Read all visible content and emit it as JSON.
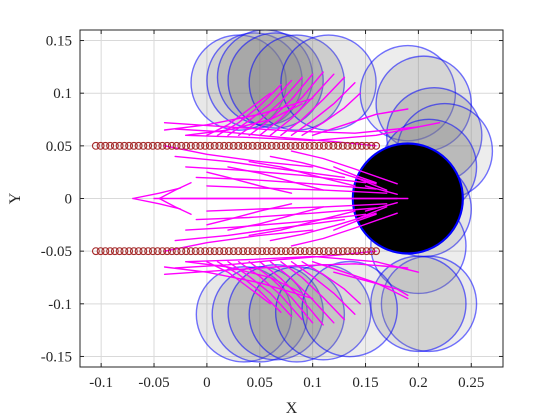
{
  "chart_data": {
    "type": "scatter",
    "title": "",
    "xlabel": "X",
    "ylabel": "Y",
    "xlim": [
      -0.12,
      0.28
    ],
    "ylim": [
      -0.16,
      0.16
    ],
    "grid": true,
    "x_ticks": [
      -0.1,
      -0.05,
      0,
      0.05,
      0.1,
      0.15,
      0.2,
      0.25
    ],
    "x_tick_labels": [
      "-0.1",
      "-0.05",
      "0",
      "0.05",
      "0.1",
      "0.15",
      "0.2",
      "0.25"
    ],
    "y_ticks": [
      -0.15,
      -0.1,
      -0.05,
      0,
      0.05,
      0.1,
      0.15
    ],
    "y_tick_labels": [
      "-0.15",
      "-0.1",
      "-0.05",
      "0",
      "0.05",
      "0.1",
      "0.15"
    ],
    "colors": {
      "marker": "#a52a2a",
      "trajectory": "#ff00ff",
      "circle_edge": "#0000ff",
      "circle_fill": "#808080",
      "target_fill": "#000000",
      "grid": "#d9d9d9",
      "axis": "#262626"
    },
    "marker_rows": [
      {
        "y": 0.05,
        "x_start": -0.105,
        "x_end": 0.16,
        "count": 60
      },
      {
        "y": -0.05,
        "x_start": -0.105,
        "x_end": 0.16,
        "count": 60
      }
    ],
    "circles": [
      {
        "x": 0.03,
        "y": 0.11,
        "r": 0.045,
        "fill_opacity": 0.18
      },
      {
        "x": 0.045,
        "y": 0.112,
        "r": 0.045,
        "fill_opacity": 0.22
      },
      {
        "x": 0.055,
        "y": 0.115,
        "r": 0.045,
        "fill_opacity": 0.28
      },
      {
        "x": 0.065,
        "y": 0.112,
        "r": 0.045,
        "fill_opacity": 0.32
      },
      {
        "x": 0.085,
        "y": 0.11,
        "r": 0.045,
        "fill_opacity": 0.26
      },
      {
        "x": 0.115,
        "y": 0.11,
        "r": 0.045,
        "fill_opacity": 0.18
      },
      {
        "x": 0.19,
        "y": 0.1,
        "r": 0.045,
        "fill_opacity": 0.14
      },
      {
        "x": 0.205,
        "y": 0.09,
        "r": 0.045,
        "fill_opacity": 0.22
      },
      {
        "x": 0.215,
        "y": 0.06,
        "r": 0.045,
        "fill_opacity": 0.26
      },
      {
        "x": 0.225,
        "y": 0.045,
        "r": 0.045,
        "fill_opacity": 0.14
      },
      {
        "x": 0.21,
        "y": 0.03,
        "r": 0.045,
        "fill_opacity": 0.28
      },
      {
        "x": 0.205,
        "y": -0.01,
        "r": 0.045,
        "fill_opacity": 0.2
      },
      {
        "x": 0.2,
        "y": -0.045,
        "r": 0.045,
        "fill_opacity": 0.14
      },
      {
        "x": 0.21,
        "y": -0.1,
        "r": 0.045,
        "fill_opacity": 0.16
      },
      {
        "x": 0.2,
        "y": -0.1,
        "r": 0.045,
        "fill_opacity": 0.24
      },
      {
        "x": 0.035,
        "y": -0.11,
        "r": 0.045,
        "fill_opacity": 0.18
      },
      {
        "x": 0.05,
        "y": -0.11,
        "r": 0.045,
        "fill_opacity": 0.22
      },
      {
        "x": 0.065,
        "y": -0.108,
        "r": 0.045,
        "fill_opacity": 0.28
      },
      {
        "x": 0.085,
        "y": -0.11,
        "r": 0.045,
        "fill_opacity": 0.22
      },
      {
        "x": 0.11,
        "y": -0.108,
        "r": 0.045,
        "fill_opacity": 0.18
      },
      {
        "x": 0.135,
        "y": -0.105,
        "r": 0.045,
        "fill_opacity": 0.14
      }
    ],
    "target": {
      "x": 0.19,
      "y": 0.0,
      "r": 0.052
    },
    "trajectories": [
      {
        "x": [
          -0.05,
          0.18
        ],
        "y": [
          0.0,
          0.0
        ]
      },
      {
        "x": [
          -0.025,
          0.19
        ],
        "y": [
          0.0,
          0.0
        ]
      },
      {
        "x": [
          -0.07,
          -0.045,
          -0.025
        ],
        "y": [
          0.0,
          0.005,
          0.01
        ]
      },
      {
        "x": [
          -0.07,
          -0.045,
          -0.025
        ],
        "y": [
          0.0,
          -0.005,
          -0.01
        ]
      },
      {
        "x": [
          -0.045,
          -0.03,
          -0.015
        ],
        "y": [
          0.0,
          0.008,
          0.015
        ]
      },
      {
        "x": [
          -0.045,
          -0.03,
          -0.015
        ],
        "y": [
          0.0,
          -0.008,
          -0.015
        ]
      },
      {
        "x": [
          -0.03,
          0.02,
          0.07,
          0.13
        ],
        "y": [
          0.04,
          0.035,
          0.028,
          0.02
        ]
      },
      {
        "x": [
          -0.03,
          0.02,
          0.07,
          0.13
        ],
        "y": [
          -0.04,
          -0.035,
          -0.028,
          -0.02
        ]
      },
      {
        "x": [
          -0.02,
          0.03,
          0.09,
          0.15
        ],
        "y": [
          0.03,
          0.027,
          0.022,
          0.015
        ]
      },
      {
        "x": [
          -0.02,
          0.03,
          0.09,
          0.15
        ],
        "y": [
          -0.03,
          -0.027,
          -0.022,
          -0.015
        ]
      },
      {
        "x": [
          -0.01,
          0.04,
          0.1,
          0.16
        ],
        "y": [
          0.02,
          0.018,
          0.014,
          0.009
        ]
      },
      {
        "x": [
          -0.01,
          0.04,
          0.1,
          0.16
        ],
        "y": [
          -0.02,
          -0.018,
          -0.014,
          -0.009
        ]
      },
      {
        "x": [
          0.0,
          0.05,
          0.11,
          0.17
        ],
        "y": [
          0.012,
          0.01,
          0.008,
          0.005
        ]
      },
      {
        "x": [
          0.0,
          0.05,
          0.11,
          0.17
        ],
        "y": [
          -0.012,
          -0.01,
          -0.008,
          -0.005
        ]
      },
      {
        "x": [
          -0.04,
          0.0,
          0.05,
          0.1
        ],
        "y": [
          0.05,
          0.042,
          0.035,
          0.03
        ]
      },
      {
        "x": [
          -0.04,
          0.0,
          0.05,
          0.1
        ],
        "y": [
          -0.05,
          -0.042,
          -0.035,
          -0.03
        ]
      },
      {
        "x": [
          0.0,
          0.02,
          0.05,
          0.08
        ],
        "y": [
          0.025,
          0.02,
          0.012,
          0.005
        ]
      },
      {
        "x": [
          0.0,
          0.02,
          0.05,
          0.08
        ],
        "y": [
          -0.025,
          -0.02,
          -0.012,
          -0.005
        ]
      },
      {
        "x": [
          0.02,
          0.05,
          0.08,
          0.11
        ],
        "y": [
          0.03,
          0.024,
          0.016,
          0.008
        ]
      },
      {
        "x": [
          0.02,
          0.05,
          0.08,
          0.11
        ],
        "y": [
          -0.03,
          -0.024,
          -0.016,
          -0.008
        ]
      },
      {
        "x": [
          0.04,
          0.07,
          0.1,
          0.14
        ],
        "y": [
          0.035,
          0.03,
          0.022,
          0.012
        ]
      },
      {
        "x": [
          0.04,
          0.07,
          0.1,
          0.14
        ],
        "y": [
          -0.035,
          -0.03,
          -0.022,
          -0.012
        ]
      },
      {
        "x": [
          0.06,
          0.09,
          0.12,
          0.16
        ],
        "y": [
          0.04,
          0.034,
          0.026,
          0.014
        ]
      },
      {
        "x": [
          0.06,
          0.09,
          0.12,
          0.16
        ],
        "y": [
          -0.04,
          -0.034,
          -0.026,
          -0.014
        ]
      },
      {
        "x": [
          0.08,
          0.11,
          0.14,
          0.18
        ],
        "y": [
          0.045,
          0.038,
          0.028,
          0.014
        ]
      },
      {
        "x": [
          0.08,
          0.11,
          0.14,
          0.18
        ],
        "y": [
          -0.045,
          -0.038,
          -0.028,
          -0.014
        ]
      },
      {
        "x": [
          0.12,
          0.14,
          0.16
        ],
        "y": [
          0.03,
          0.022,
          0.015
        ]
      },
      {
        "x": [
          0.12,
          0.14,
          0.16
        ],
        "y": [
          -0.03,
          -0.022,
          -0.015
        ]
      },
      {
        "x": [
          0.14,
          0.155,
          0.17
        ],
        "y": [
          0.02,
          0.014,
          0.008
        ]
      },
      {
        "x": [
          0.14,
          0.155,
          0.17
        ],
        "y": [
          -0.02,
          -0.014,
          -0.008
        ]
      },
      {
        "x": [
          0.15,
          0.165,
          0.18
        ],
        "y": [
          0.012,
          0.008,
          0.004
        ]
      },
      {
        "x": [
          0.15,
          0.165,
          0.18
        ],
        "y": [
          -0.012,
          -0.008,
          -0.004
        ]
      },
      {
        "x": [
          -0.03,
          0.02,
          0.07,
          0.12,
          0.16
        ],
        "y": [
          0.066,
          0.063,
          0.058,
          0.054,
          0.05
        ]
      },
      {
        "x": [
          -0.03,
          0.02,
          0.07,
          0.12,
          0.16
        ],
        "y": [
          -0.066,
          -0.063,
          -0.058,
          -0.054,
          -0.05
        ]
      },
      {
        "x": [
          -0.02,
          0.04,
          0.1,
          0.16,
          0.22
        ],
        "y": [
          0.06,
          0.058,
          0.055,
          0.06,
          0.072
        ]
      },
      {
        "x": [
          -0.02,
          0.04,
          0.1,
          0.16,
          0.2
        ],
        "y": [
          -0.06,
          -0.058,
          -0.055,
          -0.06,
          -0.07
        ]
      },
      {
        "x": [
          -0.04,
          0.02,
          0.08,
          0.14,
          0.2
        ],
        "y": [
          0.072,
          0.068,
          0.064,
          0.062,
          0.068
        ]
      },
      {
        "x": [
          -0.04,
          0.02,
          0.08,
          0.14,
          0.19
        ],
        "y": [
          -0.072,
          -0.068,
          -0.064,
          -0.062,
          -0.066
        ]
      },
      {
        "x": [
          0.0,
          0.02,
          0.04,
          0.06
        ],
        "y": [
          0.06,
          0.07,
          0.085,
          0.1
        ]
      },
      {
        "x": [
          0.01,
          0.03,
          0.05,
          0.07
        ],
        "y": [
          0.06,
          0.072,
          0.088,
          0.108
        ]
      },
      {
        "x": [
          0.02,
          0.04,
          0.06,
          0.08
        ],
        "y": [
          0.06,
          0.074,
          0.09,
          0.112
        ]
      },
      {
        "x": [
          0.03,
          0.05,
          0.07,
          0.09
        ],
        "y": [
          0.06,
          0.074,
          0.092,
          0.115
        ]
      },
      {
        "x": [
          0.04,
          0.06,
          0.08,
          0.1
        ],
        "y": [
          0.06,
          0.075,
          0.094,
          0.118
        ]
      },
      {
        "x": [
          0.05,
          0.07,
          0.09,
          0.11
        ],
        "y": [
          0.06,
          0.076,
          0.096,
          0.12
        ]
      },
      {
        "x": [
          0.06,
          0.08,
          0.1,
          0.12
        ],
        "y": [
          0.06,
          0.076,
          0.096,
          0.118
        ]
      },
      {
        "x": [
          0.07,
          0.09,
          0.11,
          0.13
        ],
        "y": [
          0.06,
          0.075,
          0.094,
          0.115
        ]
      },
      {
        "x": [
          0.08,
          0.1,
          0.12,
          0.14
        ],
        "y": [
          0.06,
          0.074,
          0.09,
          0.11
        ]
      },
      {
        "x": [
          0.09,
          0.11,
          0.13,
          0.145
        ],
        "y": [
          0.06,
          0.072,
          0.086,
          0.1
        ]
      },
      {
        "x": [
          -0.04,
          0.0,
          0.05,
          0.1
        ],
        "y": [
          0.065,
          0.07,
          0.08,
          0.095
        ]
      },
      {
        "x": [
          -0.02,
          0.02,
          0.06,
          0.09
        ],
        "y": [
          0.06,
          0.065,
          0.075,
          0.09
        ]
      },
      {
        "x": [
          0.0,
          0.02,
          0.04,
          0.06
        ],
        "y": [
          -0.06,
          -0.07,
          -0.085,
          -0.1
        ]
      },
      {
        "x": [
          0.01,
          0.03,
          0.05,
          0.07
        ],
        "y": [
          -0.06,
          -0.072,
          -0.088,
          -0.108
        ]
      },
      {
        "x": [
          0.02,
          0.04,
          0.06,
          0.08
        ],
        "y": [
          -0.06,
          -0.074,
          -0.09,
          -0.112
        ]
      },
      {
        "x": [
          0.03,
          0.05,
          0.07,
          0.09
        ],
        "y": [
          -0.06,
          -0.074,
          -0.092,
          -0.115
        ]
      },
      {
        "x": [
          0.04,
          0.06,
          0.08,
          0.1
        ],
        "y": [
          -0.06,
          -0.075,
          -0.094,
          -0.118
        ]
      },
      {
        "x": [
          0.05,
          0.07,
          0.09,
          0.11
        ],
        "y": [
          -0.06,
          -0.076,
          -0.096,
          -0.12
        ]
      },
      {
        "x": [
          0.06,
          0.08,
          0.1,
          0.12
        ],
        "y": [
          -0.06,
          -0.076,
          -0.096,
          -0.118
        ]
      },
      {
        "x": [
          0.07,
          0.09,
          0.11,
          0.13
        ],
        "y": [
          -0.06,
          -0.075,
          -0.094,
          -0.115
        ]
      },
      {
        "x": [
          0.08,
          0.1,
          0.12,
          0.14
        ],
        "y": [
          -0.06,
          -0.074,
          -0.09,
          -0.11
        ]
      },
      {
        "x": [
          0.09,
          0.11,
          0.13,
          0.145
        ],
        "y": [
          -0.06,
          -0.072,
          -0.086,
          -0.1
        ]
      },
      {
        "x": [
          -0.04,
          0.0,
          0.05,
          0.1
        ],
        "y": [
          -0.065,
          -0.07,
          -0.08,
          -0.095
        ]
      },
      {
        "x": [
          -0.02,
          0.02,
          0.06,
          0.09
        ],
        "y": [
          -0.06,
          -0.065,
          -0.075,
          -0.09
        ]
      },
      {
        "x": [
          0.1,
          0.13,
          0.16,
          0.19
        ],
        "y": [
          -0.06,
          -0.07,
          -0.08,
          -0.095
        ]
      },
      {
        "x": [
          0.12,
          0.15,
          0.18,
          0.19
        ],
        "y": [
          -0.07,
          -0.078,
          -0.086,
          -0.092
        ]
      },
      {
        "x": [
          0.1,
          0.13,
          0.16,
          0.19
        ],
        "y": [
          0.06,
          0.07,
          0.08,
          0.085
        ]
      }
    ]
  }
}
